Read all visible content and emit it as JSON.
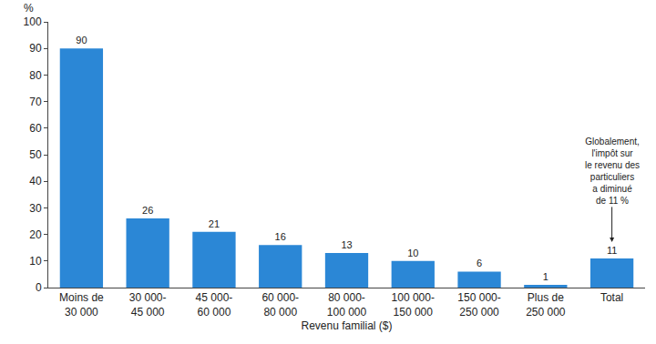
{
  "chart_data": {
    "type": "bar",
    "categories": [
      "Moins de\n30 000",
      "30 000-\n45 000",
      "45 000-\n60 000",
      "60 000-\n80 000",
      "80 000-\n100 000",
      "100 000-\n150 000",
      "150 000-\n250 000",
      "Plus de\n250 000",
      "Total"
    ],
    "values": [
      90,
      26,
      21,
      16,
      13,
      10,
      6,
      1,
      11
    ],
    "color": "#2b87d6",
    "xlabel": "Revenu familial ($)",
    "ylabel": "%",
    "ylim": [
      0,
      100
    ],
    "yticks": [
      0,
      10,
      20,
      30,
      40,
      50,
      60,
      70,
      80,
      90,
      100
    ],
    "grid": false,
    "data_labels": true,
    "annotations": [
      {
        "text": "Globalement,\nl'impôt sur\nle revenu des\nparticuliers\na diminué\nde 11 %",
        "category": "Total"
      }
    ]
  }
}
